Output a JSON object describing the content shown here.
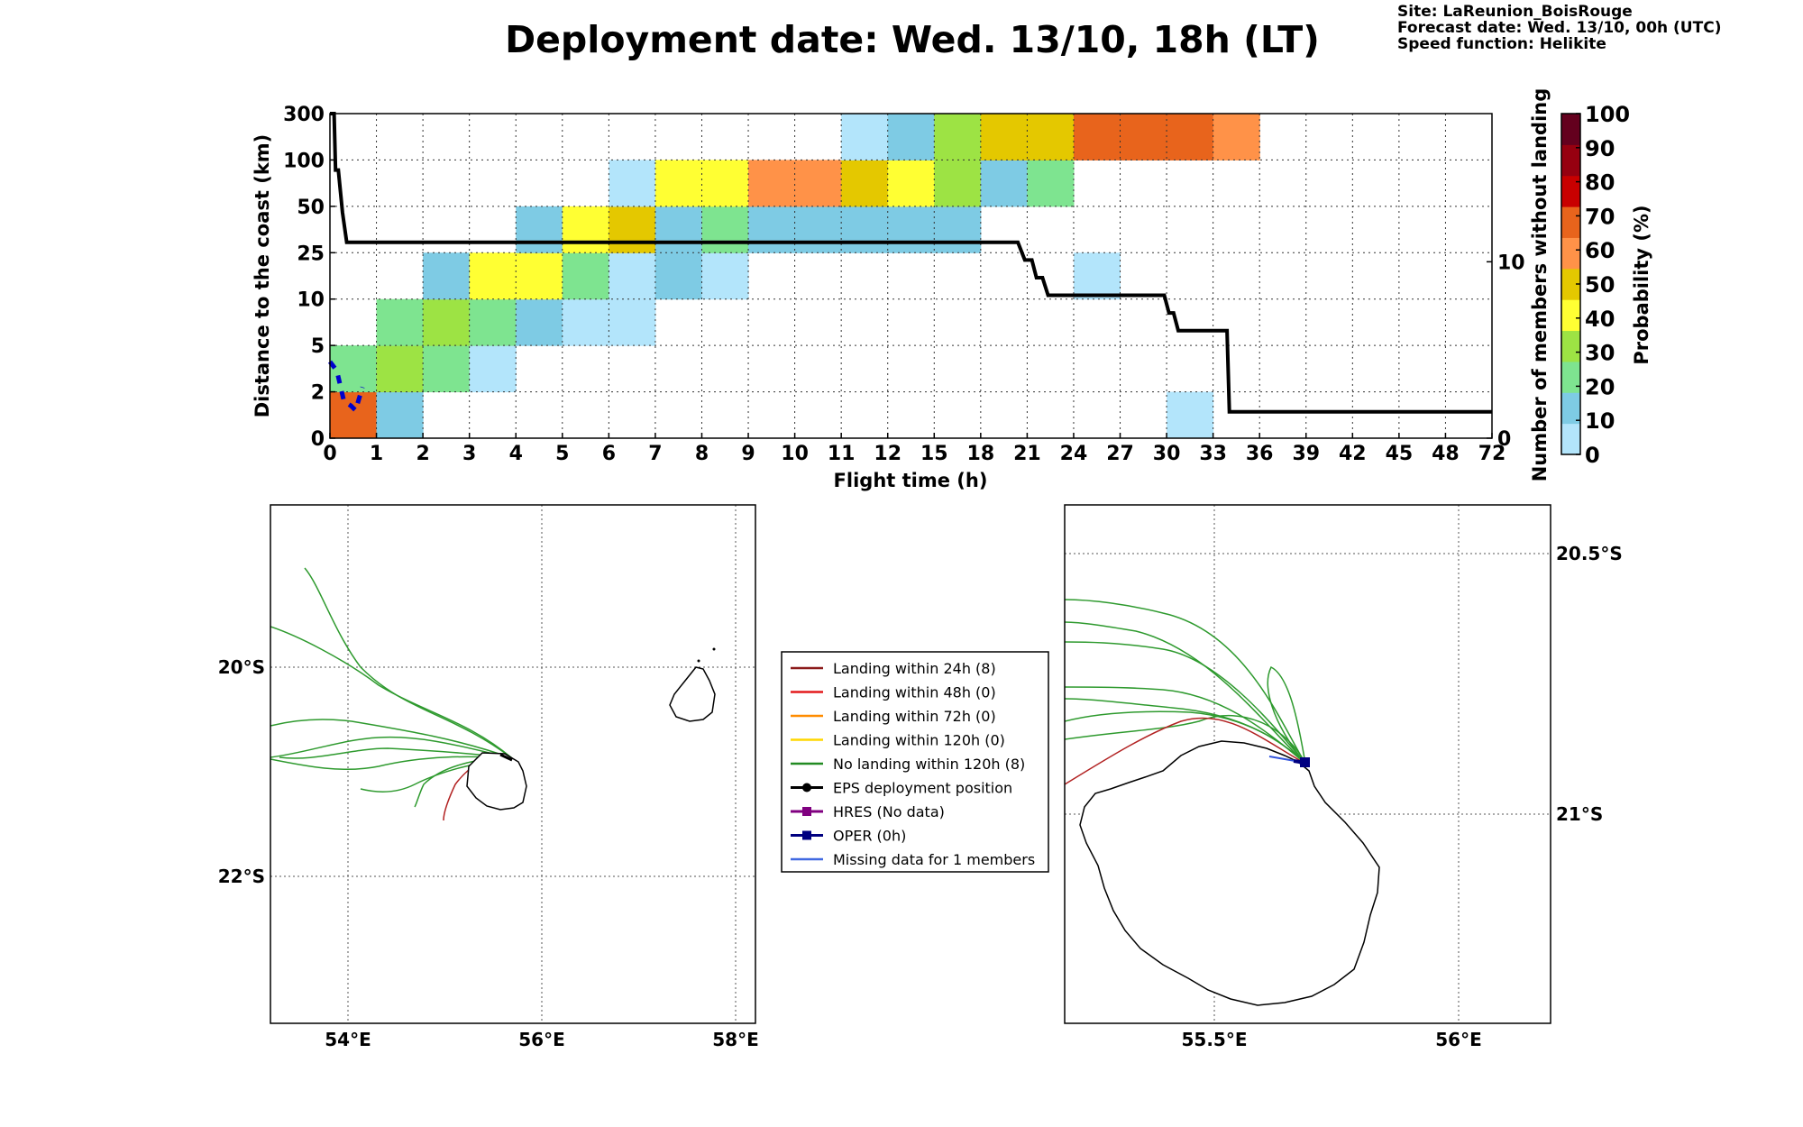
{
  "title": "Deployment date: Wed. 13/10, 18h (LT)",
  "info_lines": [
    "Site: LaReunion_BoisRouge",
    "Forecast date: Wed. 13/10, 00h (UTC)",
    "Speed function: Helikite"
  ],
  "chart_data": [
    {
      "type": "heatmap",
      "xlabel": "Flight time (h)",
      "ylabel": "Distance to the coast (km)",
      "y2label": "Number of members without landing",
      "colorbar_label": "Probability (%)",
      "x_tick_labels": [
        "0",
        "1",
        "2",
        "3",
        "4",
        "5",
        "6",
        "7",
        "8",
        "9",
        "10",
        "11",
        "12",
        "15",
        "18",
        "21",
        "24",
        "27",
        "30",
        "33",
        "36",
        "39",
        "42",
        "45",
        "48",
        "72"
      ],
      "y_tick_labels": [
        "0",
        "2",
        "5",
        "10",
        "25",
        "50",
        "100",
        "300"
      ],
      "y2_tick_labels": [
        {
          "label": "0",
          "value": 0
        },
        {
          "label": "10",
          "value": 10
        }
      ],
      "y2lim": [
        0,
        18.4
      ],
      "colorbar_ticks": [
        "0",
        "10",
        "20",
        "30",
        "40",
        "50",
        "60",
        "70",
        "80",
        "90",
        "100"
      ],
      "colorbar_colors": [
        "#b3e5fb",
        "#7ecbe4",
        "#7ee490",
        "#9de344",
        "#ffff33",
        "#e4c800",
        "#ff9248",
        "#e8641c",
        "#c80000",
        "#960010",
        "#64001e"
      ],
      "cells_note": "cells: [x_interval, y_interval, color_index]",
      "cells": [
        [
          0,
          0,
          7
        ],
        [
          1,
          0,
          1
        ],
        [
          18,
          0,
          0
        ],
        [
          0,
          1,
          2
        ],
        [
          1,
          1,
          3
        ],
        [
          2,
          1,
          2
        ],
        [
          3,
          1,
          0
        ],
        [
          1,
          2,
          2
        ],
        [
          2,
          2,
          3
        ],
        [
          3,
          2,
          2
        ],
        [
          4,
          2,
          1
        ],
        [
          5,
          2,
          0
        ],
        [
          6,
          2,
          0
        ],
        [
          2,
          3,
          1
        ],
        [
          3,
          3,
          4
        ],
        [
          4,
          3,
          4
        ],
        [
          5,
          3,
          2
        ],
        [
          6,
          3,
          0
        ],
        [
          7,
          3,
          1
        ],
        [
          8,
          3,
          0
        ],
        [
          16,
          3,
          0
        ],
        [
          4,
          4,
          1
        ],
        [
          5,
          4,
          4
        ],
        [
          6,
          4,
          5
        ],
        [
          7,
          4,
          1
        ],
        [
          8,
          4,
          2
        ],
        [
          9,
          4,
          1
        ],
        [
          10,
          4,
          1
        ],
        [
          11,
          4,
          1
        ],
        [
          12,
          4,
          1
        ],
        [
          13,
          4,
          1
        ],
        [
          6,
          5,
          0
        ],
        [
          7,
          5,
          4
        ],
        [
          8,
          5,
          4
        ],
        [
          9,
          5,
          6
        ],
        [
          10,
          5,
          6
        ],
        [
          11,
          5,
          5
        ],
        [
          12,
          5,
          4
        ],
        [
          13,
          5,
          3
        ],
        [
          14,
          5,
          1
        ],
        [
          15,
          5,
          2
        ],
        [
          11,
          6,
          0
        ],
        [
          12,
          6,
          1
        ],
        [
          13,
          6,
          3
        ],
        [
          14,
          6,
          5
        ],
        [
          15,
          6,
          5
        ],
        [
          16,
          6,
          7
        ],
        [
          17,
          6,
          7
        ],
        [
          18,
          6,
          7
        ],
        [
          19,
          6,
          6
        ]
      ],
      "members_without_landing_steps": [
        [
          0,
          18.8
        ],
        [
          0.09,
          18.8
        ],
        [
          0.12,
          15.2
        ],
        [
          0.18,
          15.2
        ],
        [
          0.27,
          12.8
        ],
        [
          0.36,
          11.1
        ],
        [
          0.54,
          11.1
        ],
        [
          14.8,
          11.1
        ],
        [
          14.95,
          10.1
        ],
        [
          15.1,
          10.1
        ],
        [
          15.2,
          9.1
        ],
        [
          15.33,
          9.1
        ],
        [
          15.45,
          8.1
        ],
        [
          17.95,
          8.1
        ],
        [
          18.05,
          7.1
        ],
        [
          18.15,
          7.1
        ],
        [
          18.25,
          6.1
        ],
        [
          19.3,
          6.1
        ],
        [
          19.35,
          1.5
        ],
        [
          25,
          1.5
        ]
      ],
      "blue_dashed": [
        [
          0,
          3.3
        ],
        [
          0.15,
          2.9
        ],
        [
          0.3,
          1.6
        ],
        [
          0.45,
          1.4
        ],
        [
          0.55,
          1.2
        ],
        [
          0.7,
          2.2
        ]
      ]
    },
    {
      "type": "map",
      "lon_ticks": [
        "54°E",
        "56°E",
        "58°E"
      ],
      "lat_ticks": [
        "20°S",
        "22°S"
      ],
      "trajectories_green": 8,
      "trajectories_red": 1
    },
    {
      "type": "map",
      "lon_ticks": [
        "55.5°E",
        "56°E"
      ],
      "lat_ticks": [
        "20.5°S",
        "21°S"
      ],
      "trajectories_green": 8,
      "trajectories_red": 1
    }
  ],
  "legend": [
    {
      "label": "Landing within 24h (8)",
      "color": "#8b1a1a",
      "marker": "none"
    },
    {
      "label": "Landing within 48h (0)",
      "color": "#e41a1c",
      "marker": "none"
    },
    {
      "label": "Landing within 72h (0)",
      "color": "#ff8c00",
      "marker": "none"
    },
    {
      "label": "Landing within 120h (0)",
      "color": "#ffd700",
      "marker": "none"
    },
    {
      "label": "No landing within 120h (8)",
      "color": "#228b22",
      "marker": "none"
    },
    {
      "label": "EPS deployment position",
      "color": "#000000",
      "marker": "circle"
    },
    {
      "label": "HRES (No data)",
      "color": "#800080",
      "marker": "square"
    },
    {
      "label": "OPER (0h)",
      "color": "#000080",
      "marker": "square"
    },
    {
      "label": "Missing data for 1 members",
      "color": "#4169e1",
      "marker": "none"
    }
  ]
}
